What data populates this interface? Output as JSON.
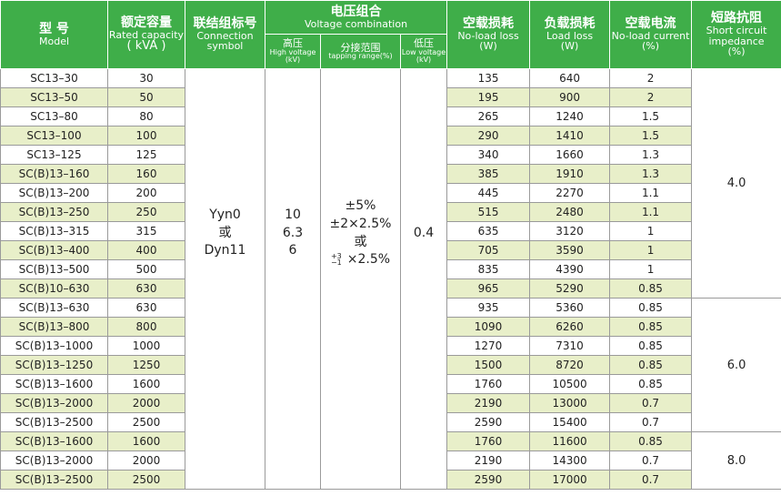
{
  "header": {
    "model_cn": "型 号",
    "model_en": "Model",
    "capacity_cn": "额定容量",
    "capacity_en": "Rated capacity",
    "capacity_unit": "( kVA )",
    "connection_cn": "联结组标号",
    "connection_en": "Connection symbol",
    "voltage_cn": "电压组合",
    "voltage_en": "Voltage combination",
    "high_cn": "高压",
    "high_en": "High voltage",
    "high_unit": "(kV)",
    "tap_cn": "分接范围",
    "tap_en": "tapping range(%)",
    "low_cn": "低压",
    "low_en": "Low voltage",
    "low_unit": "(kV)",
    "noload_cn": "空载损耗",
    "noload_en": "No-load loss",
    "noload_unit": "(W)",
    "load_cn": "负载损耗",
    "load_en": "Load loss",
    "load_unit": "(W)",
    "current_cn": "空载电流",
    "current_en": "No-load current",
    "current_unit": "(%)",
    "imp_cn": "短路抗阻",
    "imp_en": "Short circuit impedance",
    "imp_unit": "(%)"
  },
  "merged": {
    "connection": [
      "Yyn0",
      "或",
      "Dyn11"
    ],
    "high": [
      "10",
      "6.3",
      "6"
    ],
    "tapping": [
      "±5%",
      "±2×2.5%",
      "或"
    ],
    "tapping_range": {
      "sup": "+3",
      "sub": "−1",
      "text": "×2.5%"
    },
    "low": "0.4"
  },
  "rows": [
    [
      "SC13–30",
      "30",
      "135",
      "640",
      "2",
      "4.0"
    ],
    [
      "SC13–50",
      "50",
      "195",
      "900",
      "2",
      null
    ],
    [
      "SC13–80",
      "80",
      "265",
      "1240",
      "1.5",
      null
    ],
    [
      "SC13–100",
      "100",
      "290",
      "1410",
      "1.5",
      null
    ],
    [
      "SC13–125",
      "125",
      "340",
      "1660",
      "1.3",
      null
    ],
    [
      "SC(B)13–160",
      "160",
      "385",
      "1910",
      "1.3",
      null
    ],
    [
      "SC(B)13–200",
      "200",
      "445",
      "2270",
      "1.1",
      null
    ],
    [
      "SC(B)13–250",
      "250",
      "515",
      "2480",
      "1.1",
      null
    ],
    [
      "SC(B)13–315",
      "315",
      "635",
      "3120",
      "1",
      null
    ],
    [
      "SC(B)13–400",
      "400",
      "705",
      "3590",
      "1",
      null
    ],
    [
      "SC(B)13–500",
      "500",
      "835",
      "4390",
      "1",
      null
    ],
    [
      "SC(B)10–630",
      "630",
      "965",
      "5290",
      "0.85",
      null
    ],
    [
      "SC(B)13–630",
      "630",
      "935",
      "5360",
      "0.85",
      "6.0"
    ],
    [
      "SC(B)13–800",
      "800",
      "1090",
      "6260",
      "0.85",
      null
    ],
    [
      "SC(B)13–1000",
      "1000",
      "1270",
      "7310",
      "0.85",
      null
    ],
    [
      "SC(B)13–1250",
      "1250",
      "1500",
      "8720",
      "0.85",
      null
    ],
    [
      "SC(B)13–1600",
      "1600",
      "1760",
      "10500",
      "0.85",
      null
    ],
    [
      "SC(B)13–2000",
      "2000",
      "2190",
      "13000",
      "0.7",
      null
    ],
    [
      "SC(B)13–2500",
      "2500",
      "2590",
      "15400",
      "0.7",
      null
    ],
    [
      "SC(B)13–1600",
      "1600",
      "1760",
      "11600",
      "0.85",
      "8.0"
    ],
    [
      "SC(B)13–2000",
      "2000",
      "2190",
      "14300",
      "0.7",
      null
    ],
    [
      "SC(B)13–2500",
      "2500",
      "2590",
      "17000",
      "0.7",
      null
    ]
  ]
}
